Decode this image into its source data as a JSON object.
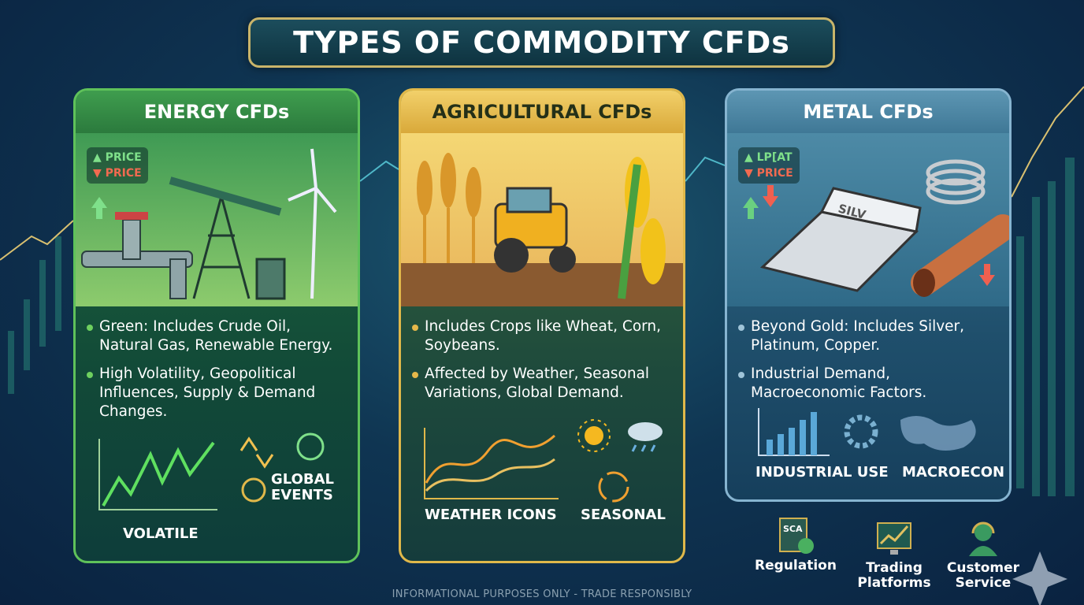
{
  "title": "TYPES OF COMMODITY CFDs",
  "colors": {
    "energy": "#5fc25a",
    "agricultural": "#e0b84a",
    "metal": "#86b4d0",
    "background": "#0f3552",
    "banner_border": "#c9b46a"
  },
  "cards": [
    {
      "id": "energy",
      "title": "ENERGY CFDs",
      "price_up": "▲ PRICE",
      "price_down": "▼ PRICE",
      "bullets": [
        "Green: Includes Crude Oil, Natural Gas, Renewable Energy.",
        "High Volatility, Geopolitical Influences, Supply & Demand Changes."
      ],
      "labels": [
        "VOLATILE",
        "GLOBAL EVENTS"
      ],
      "icons": [
        "pipeline-icon",
        "oil-pump-icon",
        "wind-turbine-icon",
        "volatile-chart-icon",
        "arrows-icon",
        "globe-icon"
      ]
    },
    {
      "id": "agricultural",
      "title": "AGRICULTURAL CFDs",
      "bullets": [
        "Includes Crops like Wheat, Corn, Soybeans.",
        "Affected by Weather, Seasonal Variations, Global Demand."
      ],
      "labels": [
        "WEATHER ICONS",
        "SEASONAL"
      ],
      "icons": [
        "wheat-icon",
        "tractor-icon",
        "corn-icon",
        "line-chart-icon",
        "sun-icon",
        "rain-cloud-icon",
        "seasonal-cycle-icon"
      ]
    },
    {
      "id": "metal",
      "title": "METAL CFDs",
      "price_up": "▲ LP[AT",
      "price_down": "▼ PRICE",
      "bar_text": "SILV",
      "bullets": [
        "Beyond Gold: Includes Silver, Platinum, Copper.",
        "Industrial Demand, Macroeconomic Factors."
      ],
      "labels": [
        "INDUSTRIAL USE",
        "MACROECON"
      ],
      "icons": [
        "silver-bar-icon",
        "wire-coil-icon",
        "copper-pipe-icon",
        "bar-chart-icon",
        "gear-icon",
        "world-map-icon"
      ]
    }
  ],
  "extras": [
    {
      "label": "Regulation",
      "badge": "SCA",
      "icon": "regulation-document-icon"
    },
    {
      "label": "Trading Platforms",
      "icon": "trading-monitor-icon"
    },
    {
      "label": "Customer Service",
      "icon": "headset-agent-icon"
    }
  ],
  "footer": "INFORMATIONAL PURPOSES ONLY - TRADE RESPONSIBLY"
}
